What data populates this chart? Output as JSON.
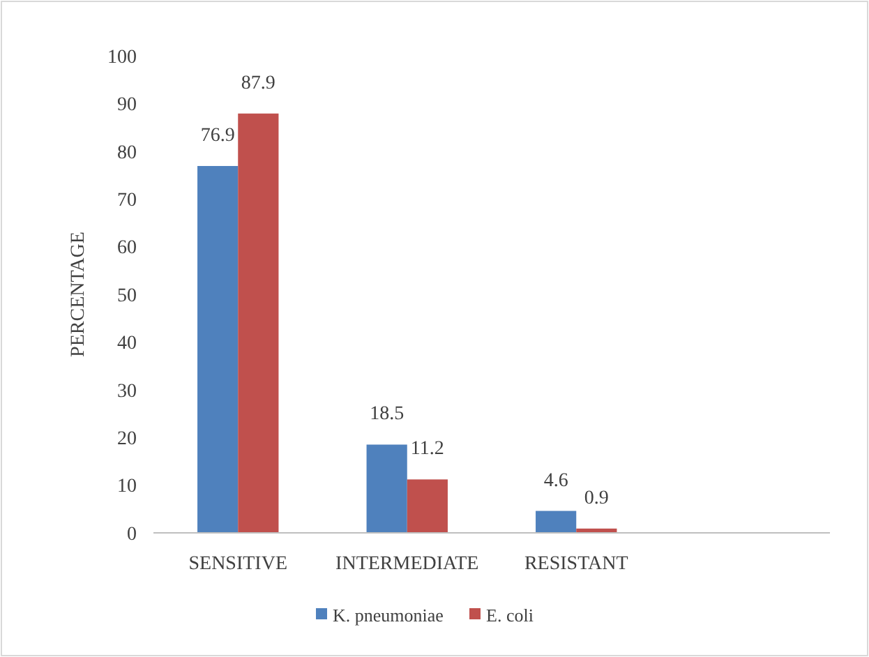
{
  "chart_data": {
    "type": "bar",
    "ylabel": "PERCENTAGE",
    "categories": [
      "SENSITIVE",
      "INTERMEDIATE",
      "RESISTANT",
      null
    ],
    "series": [
      {
        "name": "K. pneumoniae",
        "color": "#4f81bd",
        "values": [
          76.9,
          18.5,
          4.6,
          null
        ]
      },
      {
        "name": "E. coli",
        "color": "#c0504d",
        "values": [
          87.9,
          11.2,
          0.9,
          null
        ]
      }
    ],
    "ylim": [
      0,
      100
    ],
    "yticks": [
      0,
      10,
      20,
      30,
      40,
      50,
      60,
      70,
      80,
      90,
      100
    ],
    "grid": false,
    "legend": "bottom",
    "data_labels": true
  }
}
